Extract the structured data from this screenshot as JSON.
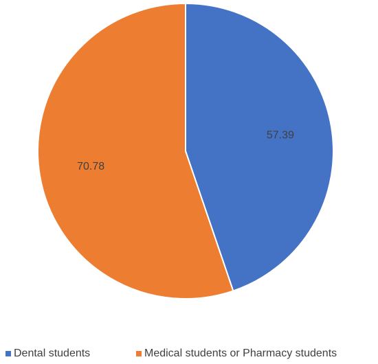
{
  "chart_data": {
    "type": "pie",
    "categories": [
      "Dental students",
      "Medical students or Pharmacy students"
    ],
    "values": [
      57.39,
      70.78
    ],
    "colors": [
      "#4472c4",
      "#ed7d31"
    ],
    "legend": "bottom"
  }
}
